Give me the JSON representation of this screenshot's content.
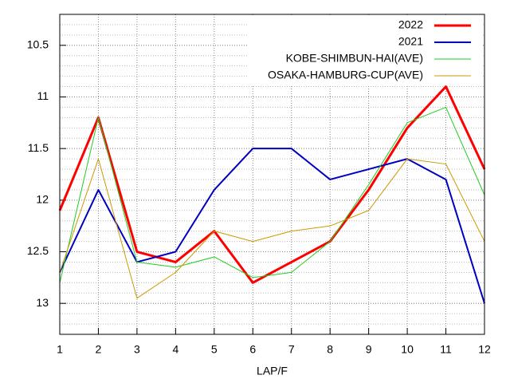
{
  "chart_data": {
    "type": "line",
    "x_label": "LAP/F",
    "x": [
      1,
      2,
      3,
      4,
      5,
      6,
      7,
      8,
      9,
      10,
      11,
      12
    ],
    "xlim": [
      1,
      12
    ],
    "xticks": [
      1,
      2,
      3,
      4,
      5,
      6,
      7,
      8,
      9,
      10,
      11,
      12
    ],
    "ylim": [
      10.2,
      13.3
    ],
    "y_reversed": true,
    "yticks": [
      10.5,
      11,
      11.5,
      12,
      12.5,
      13
    ],
    "y_minor_step": 0.1,
    "grid": true,
    "legend": "top-right",
    "series": [
      {
        "name": "2022",
        "color": "#ff0000",
        "width": 3,
        "values": [
          12.1,
          11.2,
          12.5,
          12.6,
          12.3,
          12.8,
          12.6,
          12.4,
          11.9,
          11.3,
          10.9,
          11.7
        ]
      },
      {
        "name": "2021",
        "color": "#0000c0",
        "width": 2,
        "values": [
          12.7,
          11.9,
          12.6,
          12.5,
          11.9,
          11.5,
          11.5,
          11.8,
          11.7,
          11.6,
          11.8,
          13.0
        ]
      },
      {
        "name": "KOBE-SHIMBUN-HAI(AVE)",
        "color": "#22cc22",
        "width": 1,
        "values": [
          12.8,
          11.2,
          12.6,
          12.65,
          12.55,
          12.75,
          12.7,
          12.4,
          11.85,
          11.25,
          11.1,
          11.95
        ]
      },
      {
        "name": "OSAKA-HAMBURG-CUP(AVE)",
        "color": "#cc9900",
        "width": 1,
        "values": [
          12.7,
          11.6,
          12.95,
          12.7,
          12.3,
          12.4,
          12.3,
          12.25,
          12.1,
          11.6,
          11.65,
          12.4
        ]
      }
    ]
  }
}
